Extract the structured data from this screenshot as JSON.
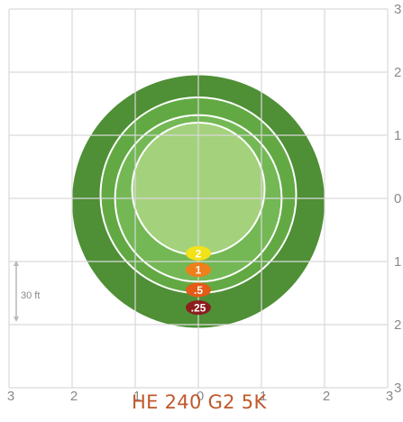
{
  "title": "HE 240 G2 5K",
  "grid": {
    "x_ticks": [
      "3",
      "2",
      "1",
      "0",
      "1",
      "2",
      "3"
    ],
    "y_ticks": [
      "3",
      "2",
      "1",
      "0",
      "1",
      "2",
      "3"
    ],
    "line_color": "#d9d9d9"
  },
  "scale_bar": {
    "label": "30 ft"
  },
  "zones": [
    {
      "name": "outer-zone",
      "color": "#4f8f36",
      "stroke": "none",
      "radius": 2.0,
      "cy": -0.05
    },
    {
      "name": "zone-3",
      "color": "#62a944",
      "stroke": "#ffffff",
      "radius": 1.55,
      "cy": 0.05
    },
    {
      "name": "zone-2",
      "color": "#73b854",
      "stroke": "#ffffff",
      "radius": 1.32,
      "cy": 0.0
    },
    {
      "name": "zone-1",
      "color": "#a4d17c",
      "stroke": "#ffffff",
      "radius": 1.05,
      "cy": 0.15
    }
  ],
  "badges": [
    {
      "label": "2",
      "color": "#f2e21a",
      "y": -0.87
    },
    {
      "label": "1",
      "color": "#ef7f1a",
      "y": -1.13
    },
    {
      "label": ".5",
      "color": "#e35b17",
      "y": -1.45
    },
    {
      "label": ".25",
      "color": "#8c1d1d",
      "y": -1.73
    }
  ],
  "colors": {
    "title": "#c0592b",
    "tick": "#8a8a8a",
    "grid": "#d9d9d9"
  }
}
